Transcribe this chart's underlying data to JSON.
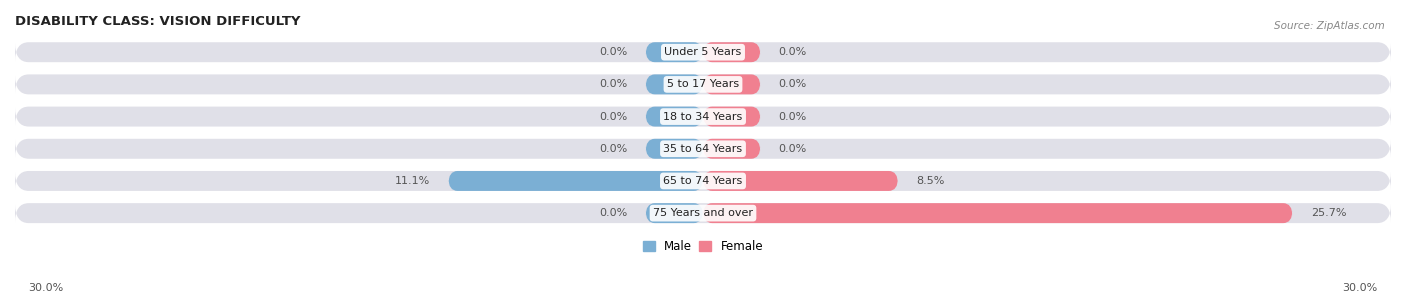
{
  "title": "DISABILITY CLASS: VISION DIFFICULTY",
  "source": "Source: ZipAtlas.com",
  "categories": [
    "Under 5 Years",
    "5 to 17 Years",
    "18 to 34 Years",
    "35 to 64 Years",
    "65 to 74 Years",
    "75 Years and over"
  ],
  "male_values": [
    0.0,
    0.0,
    0.0,
    0.0,
    11.1,
    0.0
  ],
  "female_values": [
    0.0,
    0.0,
    0.0,
    0.0,
    8.5,
    25.7
  ],
  "x_max": 30.0,
  "male_color": "#7bafd4",
  "female_color": "#f08090",
  "bar_bg_color": "#e0e0e8",
  "label_color": "#555555",
  "title_color": "#222222",
  "legend_male_color": "#7bafd4",
  "legend_female_color": "#f08090",
  "bar_height": 0.62,
  "min_bar_stub": 2.5,
  "bg_color": "#ffffff",
  "category_label_fontsize": 8,
  "value_label_fontsize": 8
}
